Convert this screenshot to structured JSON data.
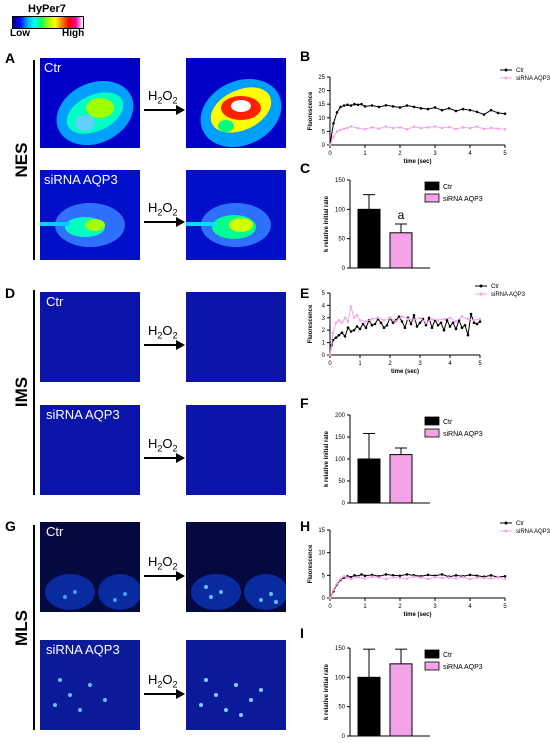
{
  "colorbar": {
    "title": "HyPer7",
    "low_label": "Low",
    "high_label": "High",
    "colors": [
      "#000080",
      "#0000ff",
      "#00a0ff",
      "#00ffff",
      "#00ff60",
      "#a0ff00",
      "#ffff00",
      "#ff8000",
      "#ff0000",
      "#ff00a0",
      "#ffffff"
    ]
  },
  "letters": {
    "A": "A",
    "B": "B",
    "C": "C",
    "D": "D",
    "E": "E",
    "F": "F",
    "G": "G",
    "H": "H",
    "I": "I"
  },
  "rows": {
    "nes": {
      "label": "NES",
      "ctr": "Ctr",
      "sirna": "siRNA AQP3"
    },
    "ims": {
      "label": "IMS",
      "ctr": "Ctr",
      "sirna": "siRNA AQP3"
    },
    "mls": {
      "label": "MLS",
      "ctr": "Ctr",
      "sirna": "siRNA AQP3"
    }
  },
  "arrow_label": {
    "main": "H",
    "sub": "2",
    "tail": "O",
    "sub2": "2"
  },
  "line_axes": {
    "xlabel": "time (sec)",
    "ylabel": "Fluorescence",
    "xticks": [
      "0",
      "1",
      "2",
      "3",
      "4",
      "5"
    ]
  },
  "bar_axes": {
    "ylabel": "k relative initial rate"
  },
  "legend": {
    "ctr": "Ctr",
    "sirna": "siRNA AQP3"
  },
  "series_colors": {
    "ctr": "#000000",
    "sirna": "#f5a3e8"
  },
  "chart_data": [
    {
      "id": "B",
      "type": "line",
      "xlim": [
        0,
        5
      ],
      "ylim": [
        0,
        25
      ],
      "yticks": [
        "0",
        "5",
        "10",
        "15",
        "20",
        "25"
      ],
      "series": [
        {
          "name": "Ctr",
          "x": [
            0,
            0.1,
            0.2,
            0.3,
            0.4,
            0.5,
            0.6,
            0.7,
            0.8,
            0.9,
            1.0,
            1.2,
            1.4,
            1.6,
            1.8,
            2.0,
            2.2,
            2.4,
            2.6,
            2.8,
            3.0,
            3.2,
            3.4,
            3.6,
            3.8,
            4.0,
            4.2,
            4.4,
            4.6,
            4.8,
            5.0
          ],
          "y": [
            0,
            8,
            12,
            14,
            14.5,
            14.8,
            14.5,
            15,
            14.8,
            15,
            14.2,
            14.5,
            14,
            14.6,
            14.2,
            13.8,
            14.5,
            14,
            13.5,
            13.2,
            13.8,
            12.8,
            13.5,
            12.5,
            13.2,
            12.8,
            12.2,
            11.2,
            12.8,
            11.8,
            11.5
          ]
        },
        {
          "name": "siRNA AQP3",
          "x": [
            0,
            0.1,
            0.2,
            0.3,
            0.4,
            0.5,
            0.6,
            0.8,
            1.0,
            1.2,
            1.4,
            1.6,
            1.8,
            2.0,
            2.2,
            2.4,
            2.6,
            2.8,
            3.0,
            3.2,
            3.4,
            3.6,
            3.8,
            4.0,
            4.2,
            4.4,
            4.6,
            4.8,
            5.0
          ],
          "y": [
            0,
            3,
            5,
            5.5,
            6,
            6.3,
            6.8,
            6.2,
            5.8,
            6.5,
            6,
            6.8,
            6.2,
            6.5,
            5.8,
            6.7,
            6.2,
            6.5,
            6.8,
            6.2,
            6.6,
            5.9,
            6.5,
            6.2,
            6.8,
            5.9,
            6.3,
            6,
            5.8
          ]
        }
      ]
    },
    {
      "id": "C",
      "type": "bar",
      "ylim": [
        0,
        150
      ],
      "yticks": [
        "0",
        "50",
        "100",
        "150"
      ],
      "annotation": "a",
      "categories": [
        "Ctr",
        "siRNA AQP3"
      ],
      "values": [
        100,
        60
      ],
      "errors": [
        25,
        15
      ]
    },
    {
      "id": "E",
      "type": "line",
      "xlim": [
        0,
        5
      ],
      "ylim": [
        0,
        5
      ],
      "yticks": [
        "0",
        "1",
        "2",
        "3",
        "4",
        "5"
      ],
      "series": [
        {
          "name": "Ctr",
          "x": [
            0,
            0.05,
            0.1,
            0.2,
            0.3,
            0.4,
            0.5,
            0.6,
            0.7,
            0.8,
            0.9,
            1.0,
            1.1,
            1.2,
            1.3,
            1.4,
            1.5,
            1.6,
            1.7,
            1.8,
            1.9,
            2.0,
            2.1,
            2.2,
            2.3,
            2.4,
            2.5,
            2.6,
            2.7,
            2.8,
            2.9,
            3.0,
            3.1,
            3.2,
            3.3,
            3.4,
            3.5,
            3.6,
            3.7,
            3.8,
            3.9,
            4.0,
            4.1,
            4.2,
            4.3,
            4.4,
            4.5,
            4.6,
            4.7,
            4.8,
            4.9,
            5.0
          ],
          "y": [
            0,
            0.8,
            1.2,
            1.4,
            1.6,
            1.8,
            1.5,
            2.2,
            1.9,
            2.0,
            2.3,
            2.1,
            2.5,
            2.2,
            2.8,
            2.4,
            2.5,
            2.9,
            2.6,
            2.2,
            2.4,
            3.0,
            2.6,
            2.8,
            3.1,
            2.7,
            2.2,
            3.0,
            2.5,
            3.2,
            2.3,
            2.6,
            2.9,
            2.4,
            3.0,
            2.2,
            2.8,
            2.4,
            2.6,
            2.0,
            2.8,
            2.3,
            2.6,
            2.1,
            2.8,
            2.2,
            2.4,
            1.6,
            3.3,
            2.6,
            2.5,
            2.7
          ]
        },
        {
          "name": "siRNA AQP3",
          "x": [
            0,
            0.1,
            0.2,
            0.3,
            0.4,
            0.5,
            0.6,
            0.7,
            0.8,
            0.9,
            1.0,
            1.2,
            1.4,
            1.6,
            1.8,
            2.0,
            2.2,
            2.4,
            2.6,
            2.8,
            3.0,
            3.2,
            3.4,
            3.6,
            3.8,
            4.0,
            4.2,
            4.4,
            4.6,
            4.8,
            5.0
          ],
          "y": [
            0,
            1.8,
            2.6,
            2.8,
            2.6,
            3.0,
            2.7,
            3.9,
            3.0,
            3.2,
            2.8,
            2.7,
            2.9,
            3.0,
            2.8,
            3.0,
            2.7,
            3.1,
            2.9,
            2.8,
            3.0,
            2.6,
            2.9,
            2.8,
            2.9,
            3.0,
            2.7,
            3.1,
            2.9,
            2.8,
            2.9
          ]
        }
      ]
    },
    {
      "id": "F",
      "type": "bar",
      "ylim": [
        0,
        200
      ],
      "yticks": [
        "0",
        "50",
        "100",
        "150",
        "200"
      ],
      "categories": [
        "Ctr",
        "siRNA AQP3"
      ],
      "values": [
        100,
        110
      ],
      "errors": [
        58,
        15
      ]
    },
    {
      "id": "H",
      "type": "line",
      "xlim": [
        0,
        5
      ],
      "ylim": [
        0,
        15
      ],
      "yticks": [
        "0",
        "5",
        "10",
        "15"
      ],
      "series": [
        {
          "name": "Ctr",
          "x": [
            0,
            0.1,
            0.2,
            0.3,
            0.4,
            0.5,
            0.6,
            0.7,
            0.8,
            0.9,
            1.0,
            1.2,
            1.4,
            1.6,
            1.8,
            2.0,
            2.2,
            2.4,
            2.6,
            2.8,
            3.0,
            3.2,
            3.4,
            3.6,
            3.8,
            4.0,
            4.2,
            4.4,
            4.6,
            4.8,
            5.0
          ],
          "y": [
            0,
            1.5,
            3,
            4,
            4.5,
            4.8,
            4.6,
            5.0,
            4.8,
            5.2,
            4.9,
            5.1,
            4.8,
            5.2,
            5.0,
            4.9,
            5.2,
            5.0,
            4.8,
            5.1,
            4.9,
            5.2,
            4.7,
            5.0,
            4.8,
            5.1,
            4.9,
            4.7,
            5.0,
            4.6,
            4.8
          ]
        },
        {
          "name": "siRNA AQP3",
          "x": [
            0,
            0.1,
            0.2,
            0.3,
            0.4,
            0.5,
            0.6,
            0.8,
            1.0,
            1.2,
            1.4,
            1.6,
            1.8,
            2.0,
            2.2,
            2.4,
            2.6,
            2.8,
            3.0,
            3.2,
            3.4,
            3.6,
            3.8,
            4.0,
            4.2,
            4.4,
            4.6,
            4.8,
            5.0
          ],
          "y": [
            0,
            1.8,
            3.2,
            4.2,
            4.8,
            4.5,
            4.2,
            4.6,
            4.3,
            4.7,
            4.5,
            4.2,
            4.6,
            4.4,
            4.3,
            4.7,
            4.5,
            4.2,
            4.6,
            4.4,
            4.5,
            4.3,
            4.6,
            4.2,
            4.5,
            4.4,
            4.3,
            4.6,
            4.3
          ]
        }
      ]
    },
    {
      "id": "I",
      "type": "bar",
      "ylim": [
        0,
        150
      ],
      "yticks": [
        "0",
        "50",
        "100",
        "150"
      ],
      "categories": [
        "Ctr",
        "siRNA AQP3"
      ],
      "values": [
        100,
        123
      ],
      "errors": [
        48,
        25
      ]
    }
  ]
}
